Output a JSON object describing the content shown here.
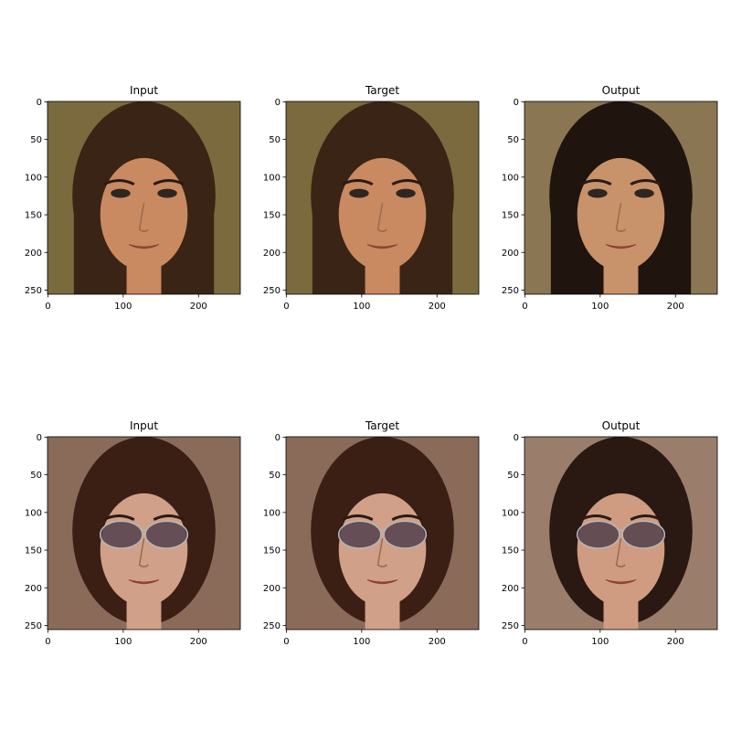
{
  "figure": {
    "panels": [
      {
        "id": "r1c1",
        "title": "Input",
        "scene": "face-long-hair",
        "bg": "#7a6a3e",
        "hair": "#3a2415",
        "skin": "#c98a62"
      },
      {
        "id": "r1c2",
        "title": "Target",
        "scene": "face-long-hair",
        "bg": "#7a6a3e",
        "hair": "#3a2415",
        "skin": "#c98a62"
      },
      {
        "id": "r1c3",
        "title": "Output",
        "scene": "face-long-hair",
        "bg": "#8b7654",
        "hair": "#1f140e",
        "skin": "#c8926a"
      },
      {
        "id": "r2c1",
        "title": "Input",
        "scene": "face-sunglasses",
        "bg": "#8a6b5a",
        "hair": "#3b1f14",
        "skin": "#d0a089"
      },
      {
        "id": "r2c2",
        "title": "Target",
        "scene": "face-sunglasses",
        "bg": "#8a6b5a",
        "hair": "#3b1f14",
        "skin": "#d0a089"
      },
      {
        "id": "r2c3",
        "title": "Output",
        "scene": "face-sunglasses",
        "bg": "#9a7e6b",
        "hair": "#2a1912",
        "skin": "#cf9c82"
      }
    ],
    "y_ticks": [
      "0",
      "50",
      "100",
      "150",
      "200",
      "250"
    ],
    "x_ticks": [
      "0",
      "100",
      "200"
    ],
    "pixel_extent": 256
  }
}
